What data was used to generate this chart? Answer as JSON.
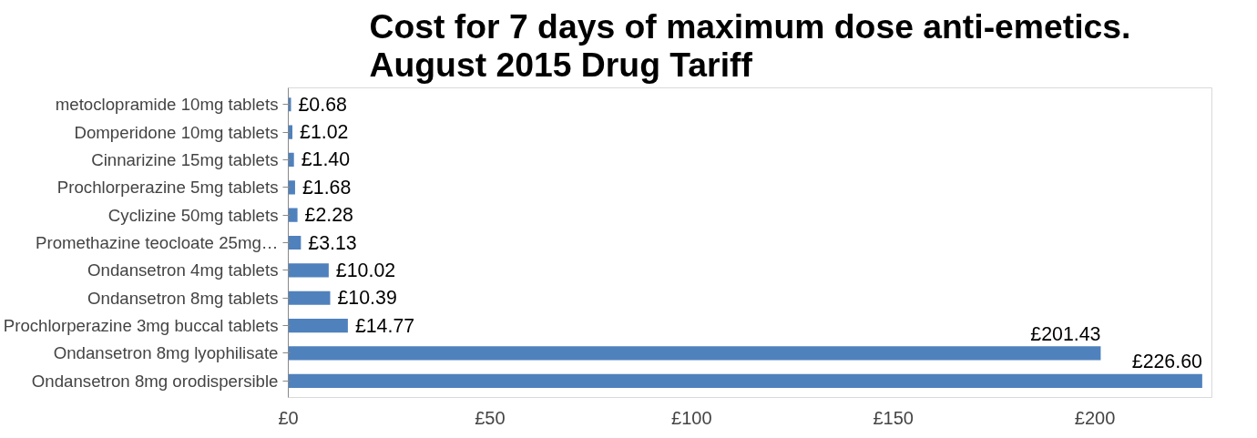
{
  "chart_data": {
    "type": "bar",
    "orientation": "horizontal",
    "title": "Cost for 7 days of maximum dose anti-emetics.\nAugust 2015 Drug Tariff",
    "categories": [
      "metoclopramide 10mg tablets",
      "Domperidone 10mg tablets",
      "Cinnarizine 15mg tablets",
      "Prochlorperazine 5mg tablets",
      "Cyclizine 50mg tablets",
      "Promethazine teocloate 25mg…",
      "Ondansetron 4mg tablets",
      "Ondansetron 8mg tablets",
      "Prochlorperazine 3mg buccal tablets",
      "Ondansetron 8mg lyophilisate",
      "Ondansetron 8mg orodispersible"
    ],
    "values": [
      0.68,
      1.02,
      1.4,
      1.68,
      2.28,
      3.13,
      10.02,
      10.39,
      14.77,
      201.43,
      226.6
    ],
    "value_labels": [
      "£0.68",
      "£1.02",
      "£1.40",
      "£1.68",
      "£2.28",
      "£3.13",
      "£10.02",
      "£10.39",
      "£14.77",
      "£201.43",
      "£226.60"
    ],
    "color": "#4f81bd",
    "xlim": [
      0,
      229
    ],
    "xticks": [
      {
        "value": 0,
        "label": "£0"
      },
      {
        "value": 50,
        "label": "£50"
      },
      {
        "value": 100,
        "label": "£100"
      },
      {
        "value": 150,
        "label": "£150"
      },
      {
        "value": 200,
        "label": "£200"
      }
    ],
    "grid": false
  }
}
